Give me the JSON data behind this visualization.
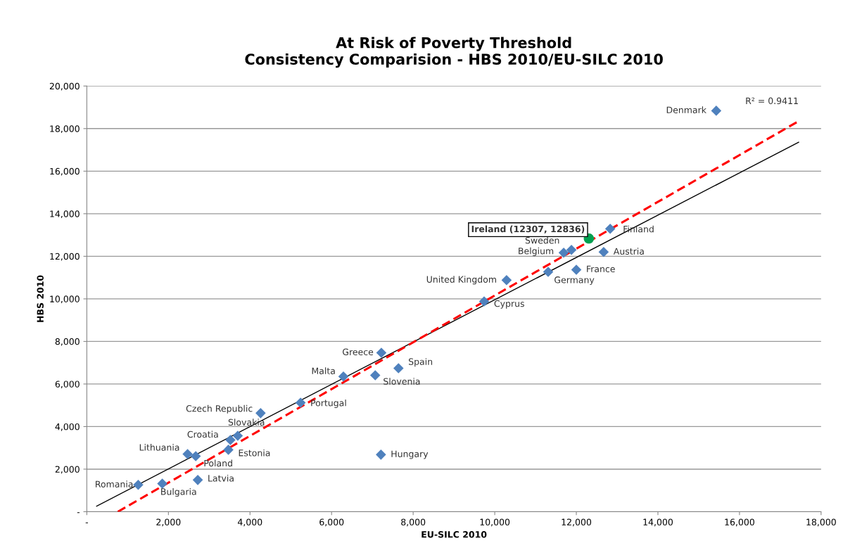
{
  "chart_data": {
    "type": "scatter",
    "title": "At Risk of Poverty Threshold\nConsistency Comparision - HBS 2010/EU-SILC 2010",
    "xlabel": "EU-SILC 2010",
    "ylabel": "HBS 2010",
    "series": [
      {
        "color": "#4f81bd",
        "marker": "diamond",
        "x": [
          1260,
          1850,
          2720,
          2470,
          2670,
          3520,
          3700,
          3470,
          4260,
          5240,
          7210,
          6290,
          7070,
          7640,
          7220,
          9740,
          10290,
          11310,
          12000,
          11690,
          11880,
          12670,
          12830,
          15430
        ],
        "values": [
          1260,
          1320,
          1490,
          2710,
          2610,
          3370,
          3570,
          2910,
          4630,
          5120,
          2680,
          6350,
          6410,
          6740,
          7470,
          9880,
          10880,
          11270,
          11370,
          12170,
          12300,
          12200,
          13290,
          18840
        ]
      },
      {
        "color": "#00a050",
        "marker": "circle",
        "x": [
          12307
        ],
        "values": [
          12836
        ]
      },
      {
        "type": "line",
        "color": "#000000",
        "line_style": "solid",
        "x": [
          240,
          17450
        ],
        "values": [
          260,
          17360
        ]
      },
      {
        "type": "line",
        "color": "#ff0000",
        "line_style": "dashed",
        "x": [
          760,
          17450
        ],
        "values": [
          0,
          18350
        ]
      }
    ],
    "annotations": [
      {
        "text": "Romania",
        "x": 1260,
        "y": 1260
      },
      {
        "text": "Bulgaria",
        "x": 1850,
        "y": 1320
      },
      {
        "text": "Latvia",
        "x": 2720,
        "y": 1490
      },
      {
        "text": "Lithuania",
        "x": 2470,
        "y": 2710
      },
      {
        "text": "Poland",
        "x": 2670,
        "y": 2610
      },
      {
        "text": "Croatia",
        "x": 3520,
        "y": 3370
      },
      {
        "text": "Slovakia",
        "x": 3700,
        "y": 3570
      },
      {
        "text": "Estonia",
        "x": 3470,
        "y": 2910
      },
      {
        "text": "Czech Republic",
        "x": 4260,
        "y": 4630
      },
      {
        "text": "Portugal",
        "x": 5240,
        "y": 5120
      },
      {
        "text": "Hungary",
        "x": 7210,
        "y": 2680
      },
      {
        "text": "Malta",
        "x": 6290,
        "y": 6350
      },
      {
        "text": "Slovenia",
        "x": 7070,
        "y": 6410
      },
      {
        "text": "Spain",
        "x": 7640,
        "y": 6740
      },
      {
        "text": "Greece",
        "x": 7220,
        "y": 7470
      },
      {
        "text": "Cyprus",
        "x": 9740,
        "y": 9880
      },
      {
        "text": "United Kingdom",
        "x": 10290,
        "y": 10880
      },
      {
        "text": "Germany",
        "x": 11310,
        "y": 11270
      },
      {
        "text": "France",
        "x": 12000,
        "y": 11370
      },
      {
        "text": "Belgium",
        "x": 11690,
        "y": 12170
      },
      {
        "text": "Sweden",
        "x": 11880,
        "y": 12300
      },
      {
        "text": "Austria",
        "x": 12670,
        "y": 12200
      },
      {
        "text": "Finland",
        "x": 12830,
        "y": 13290
      },
      {
        "text": "Denmark",
        "x": 15430,
        "y": 18840
      },
      {
        "text": "Ireland (12307, 12836)",
        "x": 12307,
        "y": 12836
      },
      {
        "text": "R² = 0.9411",
        "x": 17450,
        "y": 18350
      }
    ],
    "xlim": [
      0,
      18000
    ],
    "ylim": [
      0,
      20000
    ],
    "xticks": [
      {
        "value": 0,
        "label": "-"
      },
      {
        "value": 2000,
        "label": "2,000"
      },
      {
        "value": 4000,
        "label": "4,000"
      },
      {
        "value": 6000,
        "label": "6,000"
      },
      {
        "value": 8000,
        "label": "8,000"
      },
      {
        "value": 10000,
        "label": "10,000"
      },
      {
        "value": 12000,
        "label": "12,000"
      },
      {
        "value": 14000,
        "label": "14,000"
      },
      {
        "value": 16000,
        "label": "16,000"
      },
      {
        "value": 18000,
        "label": "18,000"
      }
    ],
    "yticks": [
      {
        "value": 0,
        "label": "-"
      },
      {
        "value": 2000,
        "label": "2,000"
      },
      {
        "value": 4000,
        "label": "4,000"
      },
      {
        "value": 6000,
        "label": "6,000"
      },
      {
        "value": 8000,
        "label": "8,000"
      },
      {
        "value": 10000,
        "label": "10,000"
      },
      {
        "value": 12000,
        "label": "12,000"
      },
      {
        "value": 14000,
        "label": "14,000"
      },
      {
        "value": 16000,
        "label": "16,000"
      },
      {
        "value": 18000,
        "label": "18,000"
      },
      {
        "value": 20000,
        "label": "20,000"
      }
    ],
    "grid": "y",
    "legend": false
  }
}
